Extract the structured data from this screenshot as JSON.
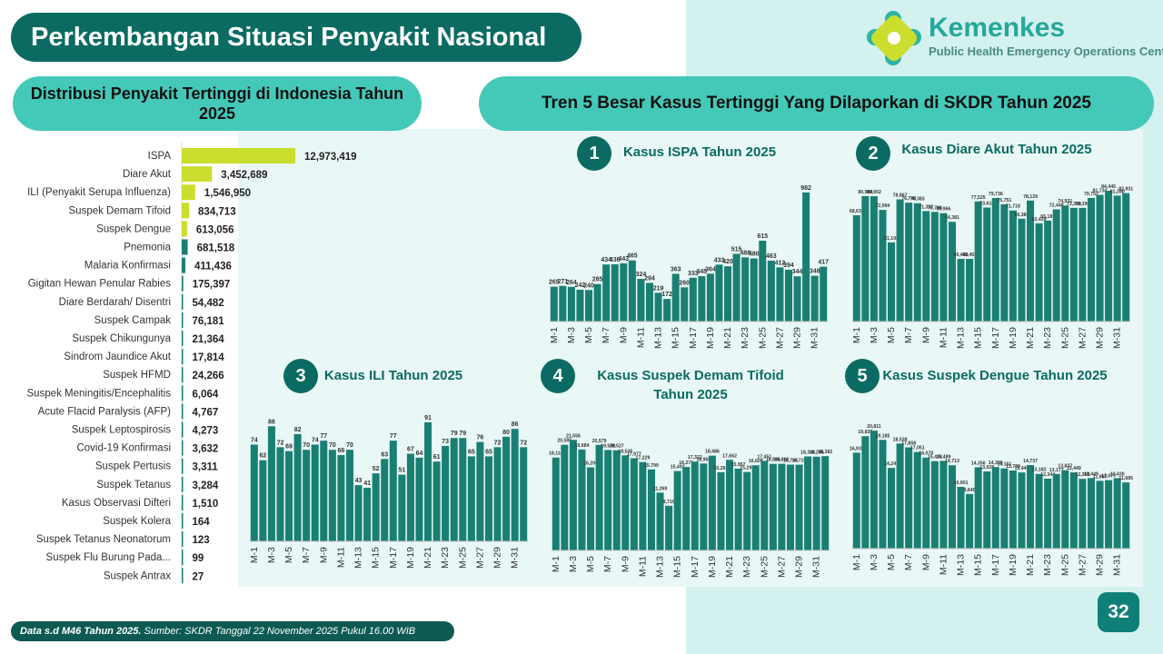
{
  "header": {
    "title": "Perkembangan Situasi Penyakit Nasional",
    "logo_name": "Kemenkes",
    "logo_sub": "Public Health Emergency Operations Center",
    "left_heading": "Distribusi Penyakit Tertinggi di Indonesia Tahun 2025",
    "right_heading": "Tren 5 Besar Kasus Tertinggi Yang Dilaporkan di SKDR Tahun 2025"
  },
  "colors": {
    "teal": "#1a7f73",
    "lime": "#cbde2e",
    "dark": "#0b6b62"
  },
  "chart_data": [
    {
      "type": "bar",
      "orientation": "horizontal",
      "title": "Distribusi Penyakit Tertinggi di Indonesia Tahun 2025",
      "categories": [
        "ISPA",
        "Diare Akut",
        "ILI (Penyakit Serupa Influenza)",
        "Suspek Demam Tifoid",
        "Suspek Dengue",
        "Pnemonia",
        "Malaria Konfirmasi",
        "Gigitan Hewan Penular Rabies",
        "Diare Berdarah/ Disentri",
        "Suspek Campak",
        "Suspek Chikungunya",
        "Sindrom Jaundice Akut",
        "Suspek HFMD",
        "Suspek Meningitis/Encephalitis",
        "Acute Flacid Paralysis (AFP)",
        "Suspek Leptospirosis",
        "Covid-19 Konfirmasi",
        "Suspek Pertusis",
        "Suspek Tetanus",
        "Kasus Observasi Difteri",
        "Suspek Kolera",
        "Suspek Tetanus Neonatorum",
        "Suspek Flu Burung Pada...",
        "Suspek Antrax"
      ],
      "values": [
        12973419,
        3452689,
        1546950,
        834713,
        613056,
        681518,
        411436,
        175397,
        54482,
        76181,
        21364,
        17814,
        24266,
        6064,
        4767,
        4273,
        3632,
        3311,
        3284,
        1510,
        164,
        123,
        99,
        27
      ],
      "labels": [
        "12,973,419",
        "3,452,689",
        "1,546,950",
        "834,713",
        "613,056",
        "681,518",
        "411,436",
        "175,397",
        "54,482",
        "76,181",
        "21,364",
        "17,814",
        "24,266",
        "6,064",
        "4,767",
        "4,273",
        "3,632",
        "3,311",
        "3,284",
        "1,510",
        "164",
        "123",
        "99",
        "27"
      ],
      "colors": [
        "#cbde2e",
        "#cbde2e",
        "#cbde2e",
        "#cbde2e",
        "#cbde2e",
        "#1a7f73",
        "#1a7f73",
        "#1a7f73",
        "#1a7f73",
        "#1a7f73",
        "#1a7f73",
        "#1a7f73",
        "#1a7f73",
        "#1a7f73",
        "#1a7f73",
        "#1a7f73",
        "#1a7f73",
        "#1a7f73",
        "#1a7f73",
        "#1a7f73",
        "#1a7f73",
        "#1a7f73",
        "#1a7f73",
        "#1a7f73"
      ]
    },
    {
      "type": "bar",
      "number": "1",
      "title": "Kasus ISPA Tahun 2025",
      "categories": [
        "M-1",
        "M-2",
        "M-3",
        "M-4",
        "M-5",
        "M-6",
        "M-7",
        "M-8",
        "M-9",
        "M-10",
        "M-11",
        "M-12",
        "M-13",
        "M-14",
        "M-15",
        "M-16",
        "M-17",
        "M-18",
        "M-19",
        "M-20",
        "M-21",
        "M-22",
        "M-23",
        "M-24",
        "M-25",
        "M-26",
        "M-27",
        "M-28",
        "M-29",
        "M-30",
        "M-31",
        "M-32"
      ],
      "values": [
        265,
        271,
        264,
        242,
        240,
        285,
        434,
        436,
        443,
        465,
        324,
        294,
        219,
        172,
        363,
        260,
        333,
        345,
        364,
        433,
        420,
        515,
        488,
        480,
        615,
        463,
        412,
        394,
        344,
        982,
        348,
        417
      ],
      "ylim": [
        0,
        1050
      ]
    },
    {
      "type": "bar",
      "number": "2",
      "title": "Kasus Diare Akut Tahun 2025",
      "categories": [
        "M-1",
        "M-2",
        "M-3",
        "M-4",
        "M-5",
        "M-6",
        "M-7",
        "M-8",
        "M-9",
        "M-10",
        "M-11",
        "M-12",
        "M-13",
        "M-14",
        "M-15",
        "M-16",
        "M-17",
        "M-18",
        "M-19",
        "M-20",
        "M-21",
        "M-22",
        "M-23",
        "M-24",
        "M-25",
        "M-26",
        "M-27",
        "M-28",
        "M-29",
        "M-30",
        "M-31",
        "M-32"
      ],
      "values": [
        68631,
        80989,
        80902,
        72094,
        51100,
        78867,
        76749,
        76383,
        71337,
        70798,
        69966,
        64381,
        40455,
        40455,
        77525,
        73618,
        79736,
        75751,
        71718,
        66389,
        78129,
        63439,
        65187,
        72448,
        74931,
        73390,
        73390,
        79752,
        81734,
        84445,
        81280,
        82931
      ],
      "labels": [
        "68,631",
        "80,989",
        "80,902",
        "72,094",
        "51,100",
        "78,867",
        "76,749",
        "76,383",
        "71,337",
        "70,798",
        "69,966",
        "64,381",
        "40,455",
        "40,455",
        "77,525",
        "73,618",
        "79,736",
        "75,751",
        "71,718",
        "66,389",
        "78,129",
        "63,439",
        "65,187",
        "72,448",
        "74,931",
        "73,390",
        "73,390",
        "79,752",
        "81,734",
        "84,445",
        "81,280",
        "82,931"
      ],
      "ylim": [
        0,
        95000
      ]
    },
    {
      "type": "bar",
      "number": "3",
      "title": "Kasus ILI Tahun 2025",
      "categories": [
        "M-1",
        "M-2",
        "M-3",
        "M-4",
        "M-5",
        "M-6",
        "M-7",
        "M-8",
        "M-9",
        "M-10",
        "M-11",
        "M-12",
        "M-13",
        "M-14",
        "M-15",
        "M-16",
        "M-17",
        "M-18",
        "M-19",
        "M-20",
        "M-21",
        "M-22",
        "M-23",
        "M-24",
        "M-25",
        "M-26",
        "M-27",
        "M-28",
        "M-29",
        "M-30",
        "M-31",
        "M-32"
      ],
      "values": [
        74,
        62,
        88,
        72,
        69,
        82,
        70,
        74,
        77,
        70,
        66,
        70,
        43,
        41,
        52,
        63,
        77,
        51,
        67,
        64,
        91,
        61,
        73,
        79,
        79,
        65,
        76,
        65,
        72,
        80,
        86,
        72
      ],
      "ylim": [
        0,
        100
      ]
    },
    {
      "type": "bar",
      "number": "4",
      "title": "Kasus Suspek Demam Tifoid Tahun 2025",
      "categories": [
        "M-1",
        "M-2",
        "M-3",
        "M-4",
        "M-5",
        "M-6",
        "M-7",
        "M-8",
        "M-9",
        "M-10",
        "M-11",
        "M-12",
        "M-13",
        "M-14",
        "M-15",
        "M-16",
        "M-17",
        "M-18",
        "M-19",
        "M-20",
        "M-21",
        "M-22",
        "M-23",
        "M-24",
        "M-25",
        "M-26",
        "M-27",
        "M-28",
        "M-29",
        "M-30",
        "M-31",
        "M-32"
      ],
      "values": [
        18114,
        20595,
        21556,
        19684,
        16200,
        20579,
        19580,
        19527,
        18535,
        17977,
        17229,
        15799,
        11269,
        8710,
        15492,
        16271,
        17322,
        16950,
        18486,
        15261,
        17662,
        15957,
        15292,
        16609,
        17451,
        16885,
        16892,
        16733,
        16723,
        18332,
        18286,
        18382
      ],
      "labels": [
        "18,114",
        "20,595",
        "21,556",
        "19,684",
        "16,200",
        "20,579",
        "19,580",
        "19,527",
        "18,535",
        "17,977",
        "17,229",
        "15,799",
        "11,269",
        "8,710",
        "15,492",
        "16,271",
        "17,322",
        "16,950",
        "18,486",
        "15,261",
        "17,662",
        "15,957",
        "15,292",
        "16,609",
        "17,451",
        "16,885",
        "16,892",
        "16,733",
        "16,723",
        "18,332",
        "18,286",
        "18,382"
      ],
      "ylim": [
        0,
        25500
      ]
    },
    {
      "type": "bar",
      "number": "5",
      "title": "Kasus Suspek Dengue Tahun 2025",
      "categories": [
        "M-1",
        "M-2",
        "M-3",
        "M-4",
        "M-5",
        "M-6",
        "M-7",
        "M-8",
        "M-9",
        "M-10",
        "M-11",
        "M-12",
        "M-13",
        "M-14",
        "M-15",
        "M-16",
        "M-17",
        "M-18",
        "M-19",
        "M-20",
        "M-21",
        "M-22",
        "M-23",
        "M-24",
        "M-25",
        "M-26",
        "M-27",
        "M-28",
        "M-29",
        "M-30",
        "M-31",
        "M-32"
      ],
      "values": [
        16933,
        19838,
        20811,
        19185,
        14241,
        18539,
        17858,
        17051,
        16070,
        15433,
        15489,
        14713,
        10901,
        9645,
        14356,
        13628,
        14396,
        14151,
        13789,
        13440,
        14737,
        13182,
        12344,
        13177,
        13837,
        13449,
        12308,
        12449,
        11967,
        12077,
        12430,
        11685
      ],
      "labels": [
        "16,933",
        "19,838",
        "20,811",
        "19,185",
        "14,241",
        "18,539",
        "17,858",
        "17,051",
        "16,070",
        "15,433",
        "15,489",
        "14,713",
        "10,901",
        "9,645",
        "14,356",
        "13,628",
        "14,396",
        "14,151",
        "13,789",
        "13,440",
        "14,737",
        "13,182",
        "12,344",
        "13,177",
        "13,837",
        "13,449",
        "12,308",
        "12,449",
        "11,967",
        "12,077",
        "12,430",
        "11,685"
      ],
      "ylim": [
        0,
        25000
      ]
    }
  ],
  "footer": {
    "bold": "Data s.d M46 Tahun 2025.",
    "rest": " Sumber: SKDR Tanggal 22 November 2025 Pukul 16.00 WIB"
  },
  "page_number": "32"
}
